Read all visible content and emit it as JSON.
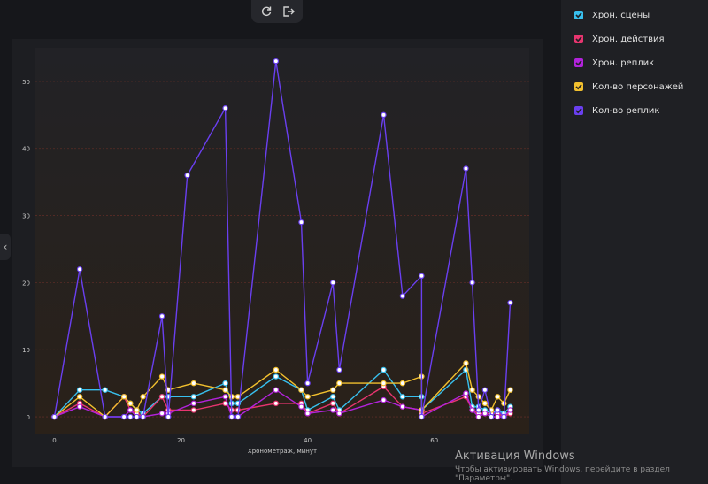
{
  "toolbar": {
    "refresh_icon": "refresh-icon",
    "export_icon": "export-icon"
  },
  "sidebar_toggle": {
    "label": "‹"
  },
  "legend": [
    {
      "label": "Хрон. сцены",
      "color": "#38c0ee",
      "checked": true
    },
    {
      "label": "Хрон. действия",
      "color": "#e8356f",
      "checked": true
    },
    {
      "label": "Хрон. реплик",
      "color": "#b223db",
      "checked": true
    },
    {
      "label": "Кол-во персонажей",
      "color": "#f2c02e",
      "checked": true
    },
    {
      "label": "Кол-во реплик",
      "color": "#6a3ff0",
      "checked": true
    }
  ],
  "watermark": {
    "title": "Активация Windows",
    "subtitle": "Чтобы активировать Windows, перейдите в раздел \"Параметры\"."
  },
  "chart_data": {
    "type": "line",
    "xlabel": "Хронометраж, минут",
    "ylabel": "",
    "xlim": [
      -3,
      75
    ],
    "ylim": [
      -2.5,
      55
    ],
    "xticks": [
      0,
      20,
      40,
      60
    ],
    "yticks": [
      0,
      10,
      20,
      30,
      40,
      50
    ],
    "grid": true,
    "series": [
      {
        "name": "Хрон. сцены",
        "color": "#38c0ee",
        "points": [
          [
            0,
            0
          ],
          [
            4,
            4
          ],
          [
            8,
            4
          ],
          [
            11,
            3
          ],
          [
            12,
            2
          ],
          [
            13,
            1
          ],
          [
            14,
            0.5
          ],
          [
            17,
            3
          ],
          [
            18,
            3
          ],
          [
            22,
            3
          ],
          [
            27,
            5
          ],
          [
            28,
            2
          ],
          [
            29,
            2
          ],
          [
            35,
            6
          ],
          [
            39,
            4
          ],
          [
            40,
            1
          ],
          [
            44,
            3
          ],
          [
            45,
            1
          ],
          [
            52,
            7
          ],
          [
            55,
            3
          ],
          [
            58,
            3
          ],
          [
            58,
            1
          ],
          [
            65,
            7
          ],
          [
            66,
            1.5
          ],
          [
            67,
            1.5
          ],
          [
            68,
            1
          ],
          [
            69,
            0.5
          ],
          [
            70,
            1
          ],
          [
            71,
            0.5
          ],
          [
            72,
            1.5
          ]
        ]
      },
      {
        "name": "Хрон. действия",
        "color": "#e8356f",
        "points": [
          [
            0,
            0
          ],
          [
            4,
            2
          ],
          [
            8,
            0
          ],
          [
            11,
            3
          ],
          [
            12,
            1
          ],
          [
            13,
            0.5
          ],
          [
            14,
            0
          ],
          [
            17,
            3
          ],
          [
            18,
            1
          ],
          [
            22,
            1
          ],
          [
            27,
            2
          ],
          [
            28,
            1
          ],
          [
            29,
            1
          ],
          [
            35,
            2
          ],
          [
            39,
            2
          ],
          [
            40,
            0.5
          ],
          [
            44,
            2
          ],
          [
            45,
            0.5
          ],
          [
            52,
            4.5
          ],
          [
            55,
            1.5
          ],
          [
            58,
            1
          ],
          [
            58,
            0.5
          ],
          [
            65,
            3
          ],
          [
            66,
            1
          ],
          [
            67,
            0.5
          ],
          [
            68,
            0.5
          ],
          [
            69,
            0.5
          ],
          [
            70,
            0.5
          ],
          [
            71,
            0
          ],
          [
            72,
            0.5
          ]
        ]
      },
      {
        "name": "Хрон. реплик",
        "color": "#b223db",
        "points": [
          [
            0,
            0
          ],
          [
            4,
            1.5
          ],
          [
            8,
            0
          ],
          [
            11,
            0
          ],
          [
            12,
            1
          ],
          [
            13,
            0
          ],
          [
            14,
            0
          ],
          [
            17,
            0.5
          ],
          [
            18,
            0.5
          ],
          [
            22,
            2
          ],
          [
            27,
            3
          ],
          [
            28,
            0
          ],
          [
            29,
            0
          ],
          [
            35,
            4
          ],
          [
            39,
            1.5
          ],
          [
            40,
            0.5
          ],
          [
            44,
            1
          ],
          [
            45,
            0.5
          ],
          [
            52,
            2.5
          ],
          [
            55,
            1.5
          ],
          [
            58,
            1
          ],
          [
            58,
            0
          ],
          [
            65,
            3.5
          ],
          [
            66,
            1
          ],
          [
            67,
            0
          ],
          [
            68,
            0.5
          ],
          [
            69,
            0
          ],
          [
            70,
            0
          ],
          [
            71,
            0
          ],
          [
            72,
            1
          ]
        ]
      },
      {
        "name": "Кол-во персонажей",
        "color": "#f2c02e",
        "points": [
          [
            0,
            0
          ],
          [
            4,
            3
          ],
          [
            8,
            0
          ],
          [
            11,
            3
          ],
          [
            12,
            2
          ],
          [
            13,
            1
          ],
          [
            14,
            3
          ],
          [
            17,
            6
          ],
          [
            18,
            4
          ],
          [
            22,
            5
          ],
          [
            27,
            4
          ],
          [
            28,
            3
          ],
          [
            29,
            3
          ],
          [
            35,
            7
          ],
          [
            39,
            4
          ],
          [
            40,
            3
          ],
          [
            44,
            4
          ],
          [
            45,
            5
          ],
          [
            52,
            5
          ],
          [
            55,
            5
          ],
          [
            58,
            6
          ],
          [
            58,
            1
          ],
          [
            65,
            8
          ],
          [
            66,
            4
          ],
          [
            67,
            3
          ],
          [
            68,
            2
          ],
          [
            69,
            1
          ],
          [
            70,
            3
          ],
          [
            71,
            2
          ],
          [
            72,
            4
          ]
        ]
      },
      {
        "name": "Кол-во реплик",
        "color": "#6a3ff0",
        "points": [
          [
            0,
            0
          ],
          [
            4,
            22
          ],
          [
            8,
            0
          ],
          [
            11,
            0
          ],
          [
            12,
            0
          ],
          [
            13,
            0
          ],
          [
            14,
            0
          ],
          [
            17,
            15
          ],
          [
            18,
            0
          ],
          [
            21,
            36
          ],
          [
            27,
            46
          ],
          [
            28,
            0
          ],
          [
            29,
            0
          ],
          [
            35,
            53
          ],
          [
            39,
            29
          ],
          [
            40,
            5
          ],
          [
            44,
            20
          ],
          [
            45,
            7
          ],
          [
            52,
            45
          ],
          [
            55,
            18
          ],
          [
            58,
            21
          ],
          [
            58,
            0
          ],
          [
            65,
            37
          ],
          [
            66,
            20
          ],
          [
            67,
            1
          ],
          [
            68,
            4
          ],
          [
            69,
            0
          ],
          [
            70,
            1
          ],
          [
            71,
            0
          ],
          [
            72,
            17
          ]
        ]
      }
    ]
  }
}
